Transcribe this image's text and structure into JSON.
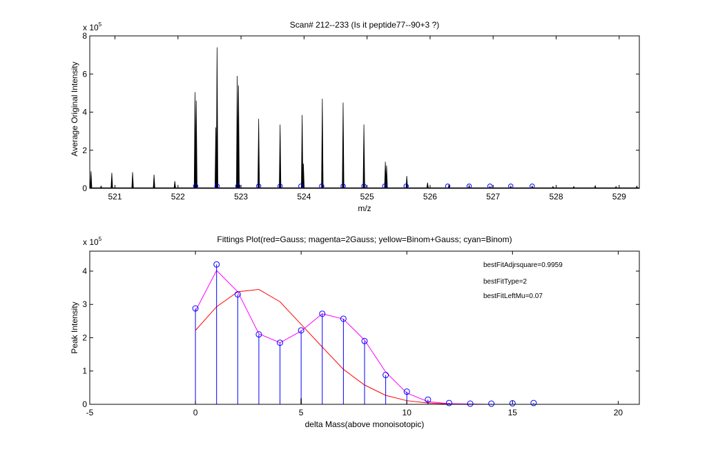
{
  "background_color": "#ffffff",
  "chart_data": [
    {
      "type": "line",
      "title": "Scan# 212--233 (Is it peptide77--90+3 ?)",
      "xlabel": "m/z",
      "ylabel": "Average Original Intensity",
      "y_multiplier": "x 10",
      "y_exponent": "5",
      "xlim": [
        520.6,
        529.32
      ],
      "ylim": [
        0,
        8
      ],
      "xticks": [
        521,
        522,
        523,
        524,
        525,
        526,
        527,
        528,
        529
      ],
      "yticks": [
        0,
        2,
        4,
        6,
        8
      ],
      "grid": false,
      "spectrum_color": "#000000",
      "marker_color": "#0000ff",
      "peaks": [
        {
          "x": 520.62,
          "y": 0.9
        },
        {
          "x": 520.78,
          "y": 0.12
        },
        {
          "x": 520.95,
          "y": 0.82
        },
        {
          "x": 521.28,
          "y": 0.85
        },
        {
          "x": 521.62,
          "y": 0.72
        },
        {
          "x": 521.95,
          "y": 0.38
        },
        {
          "x": 522.27,
          "y": 5.05
        },
        {
          "x": 522.29,
          "y": 4.6
        },
        {
          "x": 522.6,
          "y": 3.2
        },
        {
          "x": 522.62,
          "y": 7.4
        },
        {
          "x": 522.94,
          "y": 5.9
        },
        {
          "x": 522.96,
          "y": 5.4
        },
        {
          "x": 523.28,
          "y": 3.65
        },
        {
          "x": 523.62,
          "y": 3.35
        },
        {
          "x": 523.97,
          "y": 3.85
        },
        {
          "x": 523.99,
          "y": 1.3
        },
        {
          "x": 524.29,
          "y": 4.7
        },
        {
          "x": 524.62,
          "y": 4.5
        },
        {
          "x": 524.95,
          "y": 3.35
        },
        {
          "x": 525.29,
          "y": 1.4
        },
        {
          "x": 525.31,
          "y": 1.2
        },
        {
          "x": 525.63,
          "y": 0.65
        },
        {
          "x": 525.96,
          "y": 0.3
        },
        {
          "x": 526.3,
          "y": 0.2
        },
        {
          "x": 526.62,
          "y": 0.15
        },
        {
          "x": 526.95,
          "y": 0.1
        },
        {
          "x": 527.28,
          "y": 0.12
        },
        {
          "x": 527.62,
          "y": 0.12
        },
        {
          "x": 527.95,
          "y": 0.1
        },
        {
          "x": 528.28,
          "y": 0.1
        },
        {
          "x": 528.62,
          "y": 0.14
        },
        {
          "x": 528.95,
          "y": 0.1
        },
        {
          "x": 529.28,
          "y": 0.12
        }
      ],
      "markers_x": [
        522.28,
        522.62,
        522.95,
        523.28,
        523.62,
        523.95,
        524.28,
        524.62,
        524.95,
        525.28,
        525.62,
        526.28,
        526.62,
        526.95,
        527.28,
        527.62
      ],
      "markers_y": 0.08
    },
    {
      "type": "scatter",
      "title": "Fittings Plot(red=Gauss; magenta=2Gauss; yellow=Binom+Gauss; cyan=Binom)",
      "xlabel": "delta Mass(above monoisotopic)",
      "ylabel": "Peak Intensity",
      "y_multiplier": "x 10",
      "y_exponent": "5",
      "xlim": [
        -5,
        21
      ],
      "ylim": [
        0,
        4.6
      ],
      "xticks": [
        -5,
        0,
        5,
        10,
        15,
        20
      ],
      "yticks": [
        0,
        1,
        2,
        3,
        4
      ],
      "grid": false,
      "annotations": [
        "bestFitAdjrsquare=0.9959",
        "bestFitType=2",
        "bestFitLeftMu=0.07"
      ],
      "series": [
        {
          "color": "#0000ff",
          "style": "stem",
          "x": [
            0,
            1,
            2,
            3,
            4,
            5,
            6,
            7,
            8,
            9,
            10,
            11,
            12,
            13,
            14,
            15,
            16
          ],
          "y": [
            2.88,
            4.2,
            3.3,
            2.1,
            1.85,
            2.22,
            2.72,
            2.57,
            1.9,
            0.88,
            0.38,
            0.14,
            0.04,
            0.02,
            0.02,
            0.03,
            0.04
          ]
        },
        {
          "color": "#ff00ff",
          "style": "line",
          "x": [
            0,
            1,
            2,
            3,
            4,
            5,
            6,
            7,
            8,
            9,
            10,
            11,
            12,
            13,
            14,
            15,
            16
          ],
          "y": [
            2.8,
            4.02,
            3.38,
            2.12,
            1.85,
            2.2,
            2.72,
            2.56,
            1.93,
            0.97,
            0.34,
            0.08,
            0.02,
            0.01,
            0.0,
            0.0,
            0.0
          ]
        },
        {
          "color": "#ff0000",
          "style": "line",
          "x": [
            0,
            1,
            2,
            3,
            4,
            5,
            6,
            7,
            8,
            9,
            10,
            11,
            12,
            13,
            14,
            15,
            16
          ],
          "y": [
            2.22,
            2.93,
            3.38,
            3.45,
            3.08,
            2.4,
            1.72,
            1.05,
            0.58,
            0.27,
            0.11,
            0.04,
            0.01,
            0.0,
            0.0,
            0.0,
            0.0
          ]
        }
      ]
    }
  ]
}
